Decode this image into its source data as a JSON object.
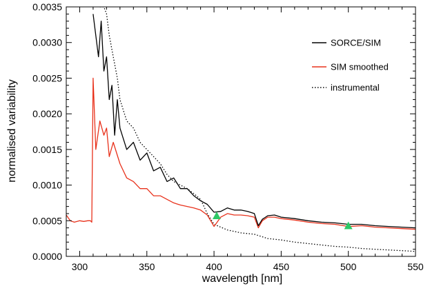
{
  "chart_data": {
    "type": "line",
    "title": "",
    "xlabel": "wavelength [nm]",
    "ylabel": "normalised variability",
    "xlim": [
      290,
      550
    ],
    "ylim": [
      0.0,
      0.0035
    ],
    "x_ticks": [
      300,
      350,
      400,
      450,
      500,
      550
    ],
    "x_tick_labels": [
      "300",
      "350",
      "400",
      "450",
      "500",
      "550"
    ],
    "y_ticks": [
      0.0,
      0.0005,
      0.001,
      0.0015,
      0.002,
      0.0025,
      0.003,
      0.0035
    ],
    "y_tick_labels": [
      "0.0000",
      "0.0005",
      "0.0010",
      "0.0015",
      "0.0020",
      "0.0025",
      "0.0030",
      "0.0035"
    ],
    "grid": false,
    "legend_position": "top-right",
    "series": [
      {
        "name": "SORCE/SIM",
        "color": "#000000",
        "style": "solid",
        "x": [
          310,
          312,
          314,
          316,
          318,
          320,
          322,
          324,
          326,
          328,
          330,
          335,
          340,
          345,
          350,
          355,
          360,
          365,
          370,
          375,
          380,
          385,
          390,
          395,
          400,
          405,
          410,
          415,
          420,
          425,
          430,
          433,
          436,
          440,
          445,
          450,
          460,
          470,
          480,
          490,
          500,
          510,
          520,
          530,
          540,
          550
        ],
        "y": [
          0.0034,
          0.0031,
          0.0028,
          0.0033,
          0.0026,
          0.0028,
          0.0022,
          0.0024,
          0.0017,
          0.0022,
          0.0018,
          0.0015,
          0.0016,
          0.00135,
          0.00145,
          0.0012,
          0.00125,
          0.00105,
          0.0011,
          0.00095,
          0.00095,
          0.00085,
          0.00078,
          0.00073,
          0.00062,
          0.00063,
          0.00068,
          0.00065,
          0.00065,
          0.00063,
          0.0006,
          0.00043,
          0.00052,
          0.00057,
          0.00058,
          0.00055,
          0.00053,
          0.0005,
          0.00048,
          0.00047,
          0.00045,
          0.00045,
          0.00043,
          0.00042,
          0.00041,
          0.0004
        ]
      },
      {
        "name": "SIM smoothed",
        "color": "#e8301a",
        "style": "solid",
        "x": [
          290,
          293,
          296,
          300,
          303,
          306,
          308,
          309,
          310,
          312,
          315,
          318,
          320,
          322,
          325,
          330,
          335,
          340,
          345,
          350,
          355,
          360,
          365,
          370,
          375,
          380,
          385,
          390,
          395,
          400,
          405,
          410,
          415,
          420,
          425,
          430,
          433,
          436,
          440,
          445,
          450,
          460,
          470,
          480,
          490,
          500,
          510,
          520,
          530,
          540,
          550
        ],
        "y": [
          0.00058,
          0.0005,
          0.00048,
          0.0005,
          0.00049,
          0.0005,
          0.0005,
          0.00048,
          0.0025,
          0.0015,
          0.0019,
          0.0017,
          0.0018,
          0.0014,
          0.0016,
          0.0013,
          0.0011,
          0.00105,
          0.00095,
          0.00095,
          0.00085,
          0.00085,
          0.0008,
          0.00075,
          0.00072,
          0.0007,
          0.00068,
          0.00065,
          0.00058,
          0.00042,
          0.00055,
          0.0006,
          0.00058,
          0.00058,
          0.00057,
          0.00055,
          0.0004,
          0.0005,
          0.00055,
          0.00055,
          0.00053,
          0.00051,
          0.00048,
          0.00046,
          0.00045,
          0.00042,
          0.00043,
          0.00041,
          0.0004,
          0.00039,
          0.00038
        ]
      },
      {
        "name": "instrumental",
        "color": "#000000",
        "style": "dotted",
        "x": [
          315,
          318,
          320,
          322,
          325,
          328,
          330,
          335,
          340,
          345,
          350,
          355,
          360,
          365,
          370,
          375,
          380,
          385,
          390,
          395,
          400,
          410,
          420,
          430,
          440,
          450,
          460,
          470,
          480,
          490,
          500,
          510,
          520,
          530,
          540,
          550
        ],
        "y": [
          0.0035,
          0.0035,
          0.0034,
          0.0031,
          0.0028,
          0.0025,
          0.0022,
          0.0019,
          0.0018,
          0.0016,
          0.0015,
          0.0014,
          0.0013,
          0.00115,
          0.00105,
          0.001,
          0.00095,
          0.00088,
          0.0008,
          0.0006,
          0.00045,
          0.00037,
          0.00033,
          0.00031,
          0.00025,
          0.00023,
          0.0002,
          0.00018,
          0.00016,
          0.00014,
          0.00013,
          0.00011,
          0.0001,
          9e-05,
          8e-05,
          7e-05
        ]
      }
    ],
    "markers": [
      {
        "x": 402,
        "y": 0.00057,
        "shape": "triangle",
        "color": "#2ec866"
      },
      {
        "x": 500,
        "y": 0.00043,
        "shape": "triangle",
        "color": "#2ec866"
      }
    ]
  }
}
